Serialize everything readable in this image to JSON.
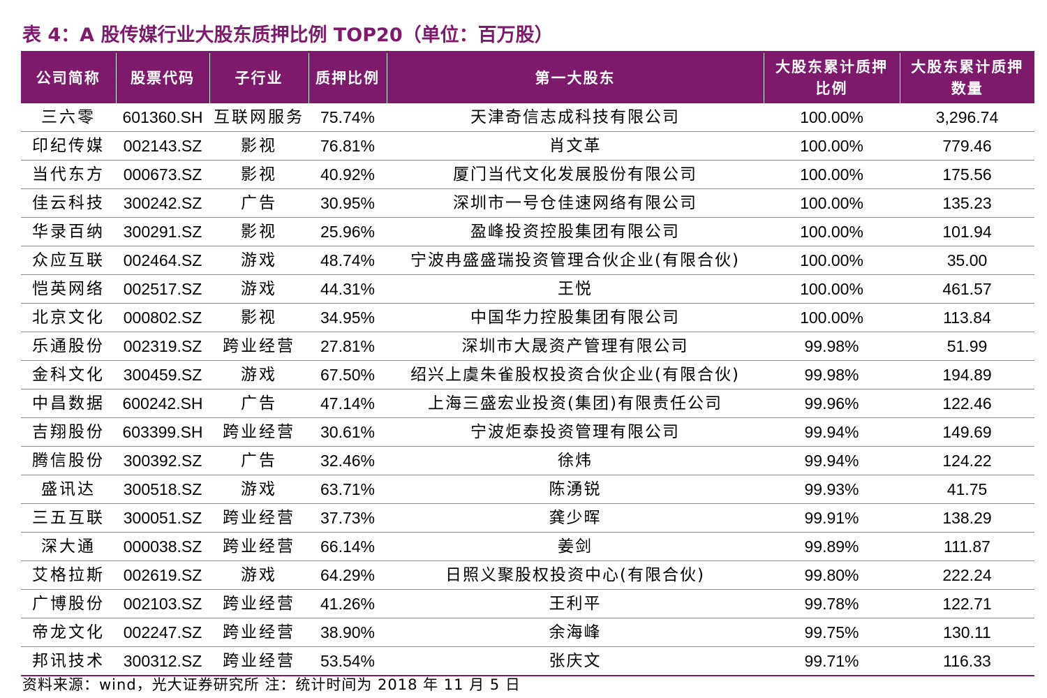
{
  "title": "表 4：A 股传媒行业大股东质押比例 TOP20（单位：百万股）",
  "colors": {
    "accent": "#7e1a6b",
    "header_text": "#ffffff"
  },
  "table": {
    "headers": {
      "company": "公司简称",
      "code": "股票代码",
      "sub_industry": "子行业",
      "pledge_ratio": "质押比例",
      "top_holder": "第一大股东",
      "cum_ratio_line1": "大股东累计质押",
      "cum_ratio_line2": "比例",
      "cum_qty_line1": "大股东累计质押",
      "cum_qty_line2": "数量"
    },
    "rows": [
      {
        "company": "三六零",
        "code": "601360.SH",
        "sub_industry": "互联网服务",
        "pledge_ratio": "75.74%",
        "top_holder": "天津奇信志成科技有限公司",
        "cum_ratio": "100.00%",
        "cum_qty": "3,296.74"
      },
      {
        "company": "印纪传媒",
        "code": "002143.SZ",
        "sub_industry": "影视",
        "pledge_ratio": "76.81%",
        "top_holder": "肖文革",
        "cum_ratio": "100.00%",
        "cum_qty": "779.46"
      },
      {
        "company": "当代东方",
        "code": "000673.SZ",
        "sub_industry": "影视",
        "pledge_ratio": "40.92%",
        "top_holder": "厦门当代文化发展股份有限公司",
        "cum_ratio": "100.00%",
        "cum_qty": "175.56"
      },
      {
        "company": "佳云科技",
        "code": "300242.SZ",
        "sub_industry": "广告",
        "pledge_ratio": "30.95%",
        "top_holder": "深圳市一号仓佳速网络有限公司",
        "cum_ratio": "100.00%",
        "cum_qty": "135.23"
      },
      {
        "company": "华录百纳",
        "code": "300291.SZ",
        "sub_industry": "影视",
        "pledge_ratio": "25.96%",
        "top_holder": "盈峰投资控股集团有限公司",
        "cum_ratio": "100.00%",
        "cum_qty": "101.94"
      },
      {
        "company": "众应互联",
        "code": "002464.SZ",
        "sub_industry": "游戏",
        "pledge_ratio": "48.74%",
        "top_holder": "宁波冉盛盛瑞投资管理合伙企业(有限合伙)",
        "cum_ratio": "100.00%",
        "cum_qty": "35.00"
      },
      {
        "company": "恺英网络",
        "code": "002517.SZ",
        "sub_industry": "游戏",
        "pledge_ratio": "44.31%",
        "top_holder": "王悦",
        "cum_ratio": "100.00%",
        "cum_qty": "461.57"
      },
      {
        "company": "北京文化",
        "code": "000802.SZ",
        "sub_industry": "影视",
        "pledge_ratio": "34.95%",
        "top_holder": "中国华力控股集团有限公司",
        "cum_ratio": "100.00%",
        "cum_qty": "113.84"
      },
      {
        "company": "乐通股份",
        "code": "002319.SZ",
        "sub_industry": "跨业经营",
        "pledge_ratio": "27.81%",
        "top_holder": "深圳市大晟资产管理有限公司",
        "cum_ratio": "99.98%",
        "cum_qty": "51.99"
      },
      {
        "company": "金科文化",
        "code": "300459.SZ",
        "sub_industry": "游戏",
        "pledge_ratio": "67.50%",
        "top_holder": "绍兴上虞朱雀股权投资合伙企业(有限合伙)",
        "cum_ratio": "99.98%",
        "cum_qty": "194.89"
      },
      {
        "company": "中昌数据",
        "code": "600242.SH",
        "sub_industry": "广告",
        "pledge_ratio": "47.14%",
        "top_holder": "上海三盛宏业投资(集团)有限责任公司",
        "cum_ratio": "99.96%",
        "cum_qty": "122.46"
      },
      {
        "company": "吉翔股份",
        "code": "603399.SH",
        "sub_industry": "跨业经营",
        "pledge_ratio": "30.61%",
        "top_holder": "宁波炬泰投资管理有限公司",
        "cum_ratio": "99.94%",
        "cum_qty": "149.69"
      },
      {
        "company": "腾信股份",
        "code": "300392.SZ",
        "sub_industry": "广告",
        "pledge_ratio": "32.46%",
        "top_holder": "徐炜",
        "cum_ratio": "99.94%",
        "cum_qty": "124.22"
      },
      {
        "company": "盛讯达",
        "code": "300518.SZ",
        "sub_industry": "游戏",
        "pledge_ratio": "63.71%",
        "top_holder": "陈湧锐",
        "cum_ratio": "99.93%",
        "cum_qty": "41.75"
      },
      {
        "company": "三五互联",
        "code": "300051.SZ",
        "sub_industry": "跨业经营",
        "pledge_ratio": "37.73%",
        "top_holder": "龚少晖",
        "cum_ratio": "99.91%",
        "cum_qty": "138.29"
      },
      {
        "company": "深大通",
        "code": "000038.SZ",
        "sub_industry": "跨业经营",
        "pledge_ratio": "66.14%",
        "top_holder": "姜剑",
        "cum_ratio": "99.89%",
        "cum_qty": "111.87"
      },
      {
        "company": "艾格拉斯",
        "code": "002619.SZ",
        "sub_industry": "游戏",
        "pledge_ratio": "64.29%",
        "top_holder": "日照义聚股权投资中心(有限合伙)",
        "cum_ratio": "99.80%",
        "cum_qty": "222.24"
      },
      {
        "company": "广博股份",
        "code": "002103.SZ",
        "sub_industry": "跨业经营",
        "pledge_ratio": "41.26%",
        "top_holder": "王利平",
        "cum_ratio": "99.78%",
        "cum_qty": "122.71"
      },
      {
        "company": "帝龙文化",
        "code": "002247.SZ",
        "sub_industry": "跨业经营",
        "pledge_ratio": "38.90%",
        "top_holder": "余海峰",
        "cum_ratio": "99.75%",
        "cum_qty": "130.11"
      },
      {
        "company": "邦讯技术",
        "code": "300312.SZ",
        "sub_industry": "跨业经营",
        "pledge_ratio": "53.54%",
        "top_holder": "张庆文",
        "cum_ratio": "99.71%",
        "cum_qty": "116.33"
      }
    ]
  },
  "source_note": "资料来源：wind，光大证券研究所  注：统计时间为 2018 年 11 月 5 日"
}
